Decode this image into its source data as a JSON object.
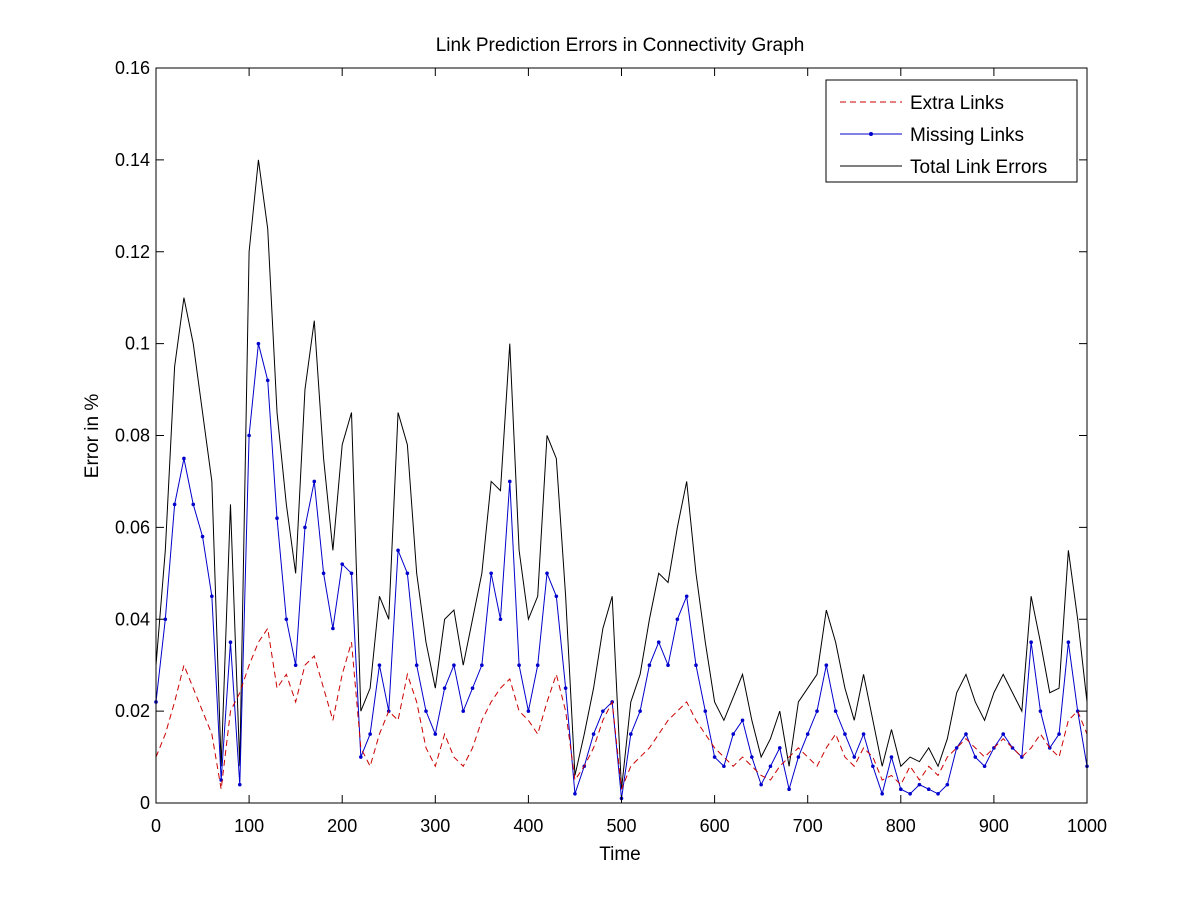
{
  "chart_data": {
    "type": "line",
    "title": "Link Prediction Errors in Connectivity Graph",
    "xlabel": "Time",
    "ylabel": "Error in %",
    "xlim": [
      0,
      1000
    ],
    "ylim": [
      0,
      0.16
    ],
    "xticks": [
      0,
      100,
      200,
      300,
      400,
      500,
      600,
      700,
      800,
      900,
      1000
    ],
    "yticks": [
      0,
      0.02,
      0.04,
      0.06,
      0.08,
      0.1,
      0.12,
      0.14,
      0.16
    ],
    "xtick_labels": [
      "0",
      "100",
      "200",
      "300",
      "400",
      "500",
      "600",
      "700",
      "800",
      "900",
      "1000"
    ],
    "ytick_labels": [
      "0",
      "0.02",
      "0.04",
      "0.06",
      "0.08",
      "0.1",
      "0.12",
      "0.14",
      "0.16"
    ],
    "grid": false,
    "legend_position": "top-right",
    "x": [
      0,
      10,
      20,
      30,
      40,
      50,
      60,
      70,
      80,
      90,
      100,
      110,
      120,
      130,
      140,
      150,
      160,
      170,
      180,
      190,
      200,
      210,
      220,
      230,
      240,
      250,
      260,
      270,
      280,
      290,
      300,
      310,
      320,
      330,
      340,
      350,
      360,
      370,
      380,
      390,
      400,
      410,
      420,
      430,
      440,
      450,
      460,
      470,
      480,
      490,
      500,
      510,
      520,
      530,
      540,
      550,
      560,
      570,
      580,
      590,
      600,
      610,
      620,
      630,
      640,
      650,
      660,
      670,
      680,
      690,
      700,
      710,
      720,
      730,
      740,
      750,
      760,
      770,
      780,
      790,
      800,
      810,
      820,
      830,
      840,
      850,
      860,
      870,
      880,
      890,
      900,
      910,
      920,
      930,
      940,
      950,
      960,
      970,
      980,
      990,
      1000
    ],
    "series": [
      {
        "name": "Extra Links",
        "color": "#cc0000",
        "style": "dashed",
        "values": [
          0.01,
          0.015,
          0.022,
          0.03,
          0.025,
          0.02,
          0.015,
          0.003,
          0.02,
          0.024,
          0.03,
          0.035,
          0.038,
          0.025,
          0.028,
          0.022,
          0.03,
          0.032,
          0.025,
          0.018,
          0.028,
          0.035,
          0.012,
          0.008,
          0.015,
          0.02,
          0.018,
          0.028,
          0.022,
          0.012,
          0.008,
          0.015,
          0.01,
          0.008,
          0.012,
          0.018,
          0.022,
          0.025,
          0.027,
          0.02,
          0.018,
          0.015,
          0.022,
          0.028,
          0.02,
          0.005,
          0.008,
          0.012,
          0.018,
          0.022,
          0.003,
          0.008,
          0.01,
          0.012,
          0.015,
          0.018,
          0.02,
          0.022,
          0.018,
          0.015,
          0.012,
          0.01,
          0.008,
          0.01,
          0.008,
          0.006,
          0.005,
          0.008,
          0.01,
          0.012,
          0.01,
          0.008,
          0.012,
          0.015,
          0.01,
          0.008,
          0.012,
          0.01,
          0.005,
          0.006,
          0.004,
          0.008,
          0.005,
          0.008,
          0.006,
          0.01,
          0.012,
          0.014,
          0.012,
          0.01,
          0.012,
          0.014,
          0.012,
          0.01,
          0.012,
          0.015,
          0.012,
          0.01,
          0.018,
          0.02,
          0.015
        ]
      },
      {
        "name": "Missing Links",
        "color": "#0000cc",
        "style": "solid-dot",
        "values": [
          0.022,
          0.04,
          0.065,
          0.075,
          0.065,
          0.058,
          0.045,
          0.005,
          0.035,
          0.004,
          0.08,
          0.1,
          0.092,
          0.062,
          0.04,
          0.03,
          0.06,
          0.07,
          0.05,
          0.038,
          0.052,
          0.05,
          0.01,
          0.015,
          0.03,
          0.02,
          0.055,
          0.05,
          0.03,
          0.02,
          0.015,
          0.025,
          0.03,
          0.02,
          0.025,
          0.03,
          0.05,
          0.04,
          0.07,
          0.03,
          0.02,
          0.03,
          0.05,
          0.045,
          0.025,
          0.002,
          0.008,
          0.015,
          0.02,
          0.022,
          0.001,
          0.015,
          0.02,
          0.03,
          0.035,
          0.03,
          0.04,
          0.045,
          0.03,
          0.02,
          0.01,
          0.008,
          0.015,
          0.018,
          0.01,
          0.004,
          0.008,
          0.012,
          0.003,
          0.01,
          0.015,
          0.02,
          0.03,
          0.02,
          0.015,
          0.01,
          0.015,
          0.008,
          0.002,
          0.01,
          0.003,
          0.002,
          0.004,
          0.003,
          0.002,
          0.004,
          0.012,
          0.015,
          0.01,
          0.008,
          0.012,
          0.015,
          0.012,
          0.01,
          0.035,
          0.02,
          0.012,
          0.015,
          0.035,
          0.02,
          0.008
        ]
      },
      {
        "name": "Total Link Errors",
        "color": "#000000",
        "style": "solid",
        "values": [
          0.03,
          0.055,
          0.095,
          0.11,
          0.1,
          0.085,
          0.07,
          0.008,
          0.065,
          0.008,
          0.12,
          0.14,
          0.125,
          0.085,
          0.065,
          0.05,
          0.09,
          0.105,
          0.075,
          0.055,
          0.078,
          0.085,
          0.02,
          0.025,
          0.045,
          0.04,
          0.085,
          0.078,
          0.05,
          0.035,
          0.025,
          0.04,
          0.042,
          0.03,
          0.04,
          0.05,
          0.07,
          0.068,
          0.1,
          0.055,
          0.04,
          0.045,
          0.08,
          0.075,
          0.045,
          0.006,
          0.015,
          0.025,
          0.038,
          0.045,
          0.003,
          0.022,
          0.028,
          0.04,
          0.05,
          0.048,
          0.06,
          0.07,
          0.05,
          0.035,
          0.022,
          0.018,
          0.023,
          0.028,
          0.018,
          0.01,
          0.014,
          0.02,
          0.008,
          0.022,
          0.025,
          0.028,
          0.042,
          0.035,
          0.025,
          0.018,
          0.028,
          0.018,
          0.008,
          0.016,
          0.008,
          0.01,
          0.009,
          0.012,
          0.008,
          0.014,
          0.024,
          0.028,
          0.022,
          0.018,
          0.024,
          0.028,
          0.024,
          0.02,
          0.045,
          0.035,
          0.024,
          0.025,
          0.055,
          0.04,
          0.022
        ]
      }
    ]
  }
}
